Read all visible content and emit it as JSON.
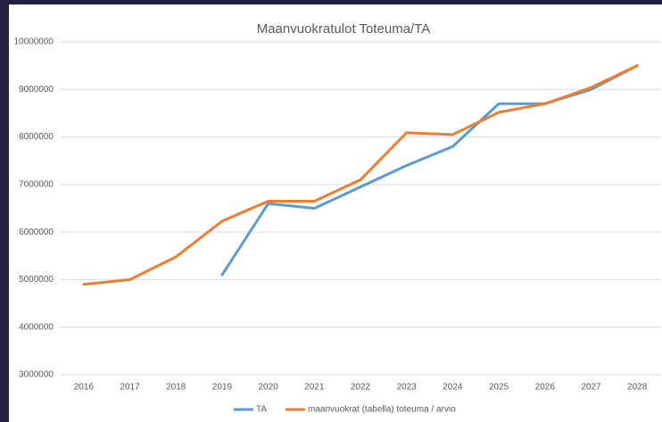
{
  "chart_data": {
    "type": "line",
    "title": "Maanvuokratulot Toteuma/TA",
    "categories": [
      "2016",
      "2017",
      "2018",
      "2019",
      "2020",
      "2021",
      "2022",
      "2023",
      "2024",
      "2025",
      "2026",
      "2027",
      "2028"
    ],
    "series": [
      {
        "name": "TA",
        "color": "#5b9bd5",
        "values": [
          null,
          null,
          null,
          5100000,
          6600000,
          6500000,
          6950000,
          7400000,
          7800000,
          8700000,
          8700000,
          9000000,
          9500000
        ]
      },
      {
        "name": "maanvuokrat (tabella) toteuma / arvio",
        "color": "#ed7d31",
        "values": [
          4900000,
          5000000,
          5480000,
          6230000,
          6650000,
          6650000,
          7100000,
          8090000,
          8050000,
          8520000,
          8700000,
          9040000,
          9500000
        ]
      }
    ],
    "ylim": [
      3000000,
      10000000
    ],
    "yticks": [
      3000000,
      4000000,
      5000000,
      6000000,
      7000000,
      8000000,
      9000000,
      10000000
    ],
    "grid": true,
    "legend": "bottom"
  }
}
